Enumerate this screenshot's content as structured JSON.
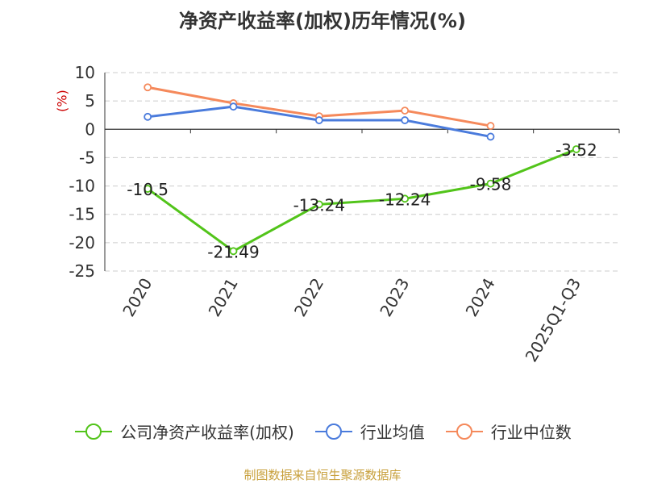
{
  "chart_data": {
    "type": "line",
    "title": "净资产收益率(加权)历年情况(%)",
    "ylabel": "(%)",
    "xlabel": "",
    "categories": [
      "2020",
      "2021",
      "2022",
      "2023",
      "2024",
      "2025Q1-Q3"
    ],
    "ylim": [
      -25,
      10
    ],
    "yticks": [
      10,
      5,
      0,
      -5,
      -10,
      -15,
      -20,
      -25
    ],
    "grid": true,
    "legend_position": "bottom",
    "series": [
      {
        "name": "公司净资产收益率(加权)",
        "color": "#52c41a",
        "values": [
          -10.5,
          -21.49,
          -13.24,
          -12.24,
          -9.58,
          -3.52
        ],
        "labels": [
          "-10.5",
          "-21.49",
          "-13.24",
          "-12.24",
          "-9.58",
          "-3.52"
        ]
      },
      {
        "name": "行业均值",
        "color": "#4a7bdc",
        "values": [
          2.2,
          4.0,
          1.6,
          1.6,
          -1.3,
          null
        ]
      },
      {
        "name": "行业中位数",
        "color": "#f5895b",
        "values": [
          7.4,
          4.6,
          2.3,
          3.3,
          0.6,
          null
        ]
      }
    ]
  },
  "ylabel_color": "#cc0000",
  "source": "制图数据来自恒生聚源数据库"
}
